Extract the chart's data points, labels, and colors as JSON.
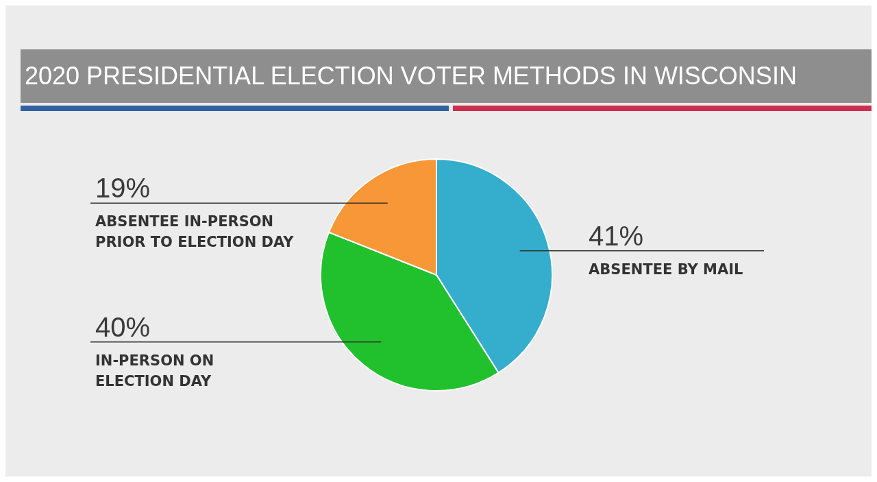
{
  "chart_data": {
    "type": "pie",
    "title": "2020 PRESIDENTIAL ELECTION VOTER METHODS IN WISCONSIN",
    "categories": [
      "ABSENTEE BY MAIL",
      "IN-PERSON ON\nELECTION DAY",
      "ABSENTEE IN-PERSON\nPRIOR TO ELECTION DAY"
    ],
    "values": [
      41,
      40,
      19
    ],
    "value_labels": [
      "41%",
      "40%",
      "19%"
    ],
    "colors": [
      "#35aecd",
      "#21c12e",
      "#f79737"
    ],
    "legend": false
  }
}
